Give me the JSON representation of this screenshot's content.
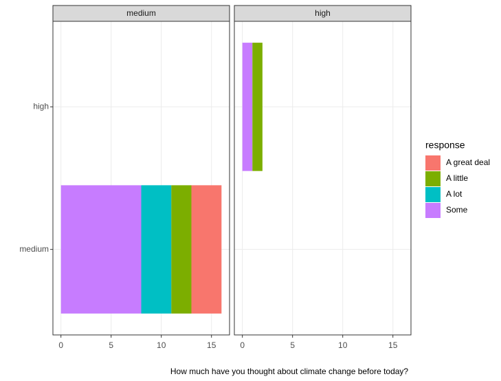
{
  "chart_data": {
    "type": "bar",
    "orientation": "horizontal",
    "stacked": true,
    "x_label": "How much have you thought about climate change before today?",
    "legend_title": "response",
    "categories": [
      "medium",
      "high"
    ],
    "facets": [
      "medium",
      "high"
    ],
    "xlim": [
      -0.8,
      16.8
    ],
    "xticks": [
      0,
      5,
      10,
      15
    ],
    "grid": true,
    "series": [
      {
        "name": "A great deal",
        "color": "#F8766D",
        "values": [
          [
            3,
            null
          ],
          [
            null,
            null
          ]
        ]
      },
      {
        "name": "A little",
        "color": "#7CAE00",
        "values": [
          [
            2,
            null
          ],
          [
            null,
            1
          ]
        ]
      },
      {
        "name": "A lot",
        "color": "#00BFC4",
        "values": [
          [
            3,
            null
          ],
          [
            null,
            null
          ]
        ]
      },
      {
        "name": "Some",
        "color": "#C77CFF",
        "values": [
          [
            8,
            null
          ],
          [
            null,
            1
          ]
        ]
      }
    ]
  }
}
